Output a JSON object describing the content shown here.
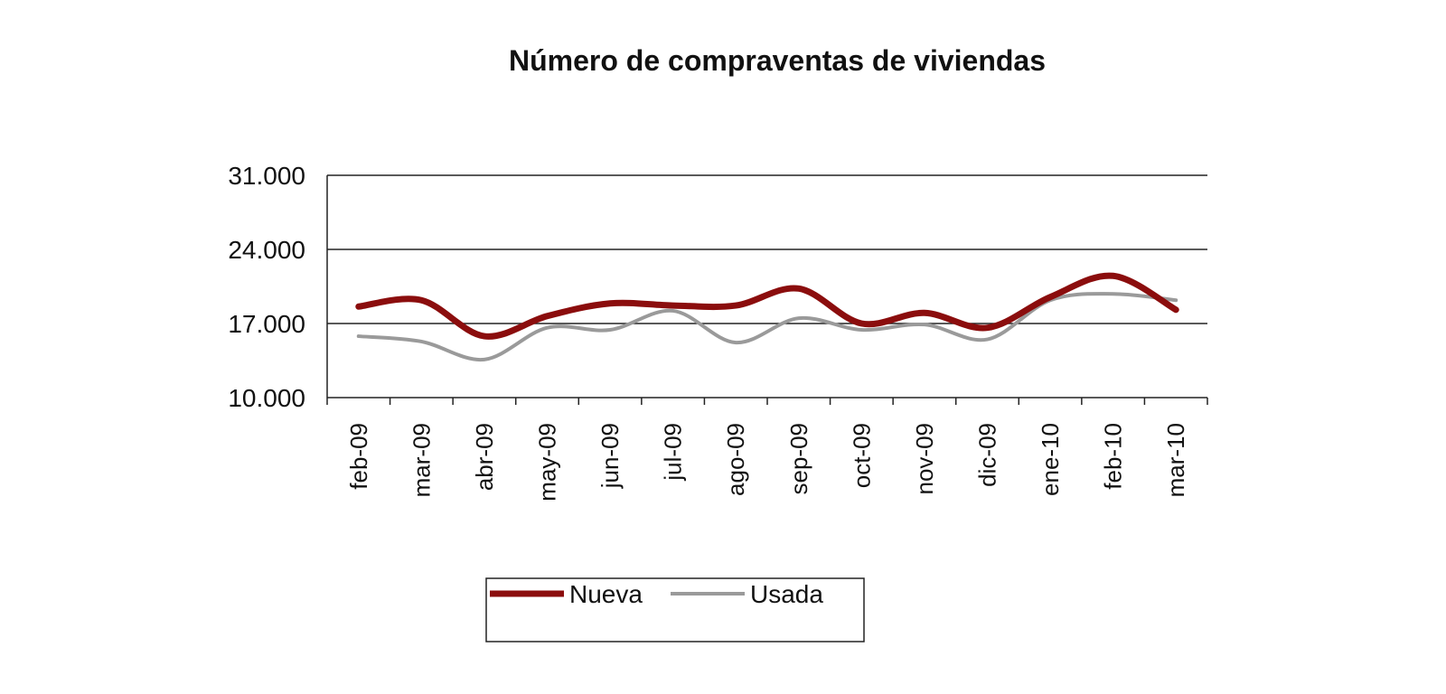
{
  "chart_data": {
    "type": "line",
    "title": "Número de compraventas de viviendas",
    "categories": [
      "feb-09",
      "mar-09",
      "abr-09",
      "may-09",
      "jun-09",
      "jul-09",
      "ago-09",
      "sep-09",
      "oct-09",
      "nov-09",
      "dic-09",
      "ene-10",
      "feb-10",
      "mar-10"
    ],
    "series": [
      {
        "name": "Nueva",
        "color": "#8b0d0d",
        "values": [
          18600,
          19200,
          15800,
          17700,
          18900,
          18700,
          18700,
          20300,
          17000,
          18000,
          16600,
          19500,
          21500,
          18300
        ]
      },
      {
        "name": "Usada",
        "color": "#9a9a9a",
        "values": [
          15800,
          15300,
          13600,
          16600,
          16400,
          18200,
          15200,
          17500,
          16400,
          16900,
          15500,
          19200,
          19800,
          19200
        ]
      }
    ],
    "ylim": [
      10000,
      31000
    ],
    "yticks": [
      {
        "value": 10000,
        "label": "10.000"
      },
      {
        "value": 17000,
        "label": "17.000"
      },
      {
        "value": 24000,
        "label": "24.000"
      },
      {
        "value": 31000,
        "label": "31.000"
      }
    ],
    "grid": true
  }
}
